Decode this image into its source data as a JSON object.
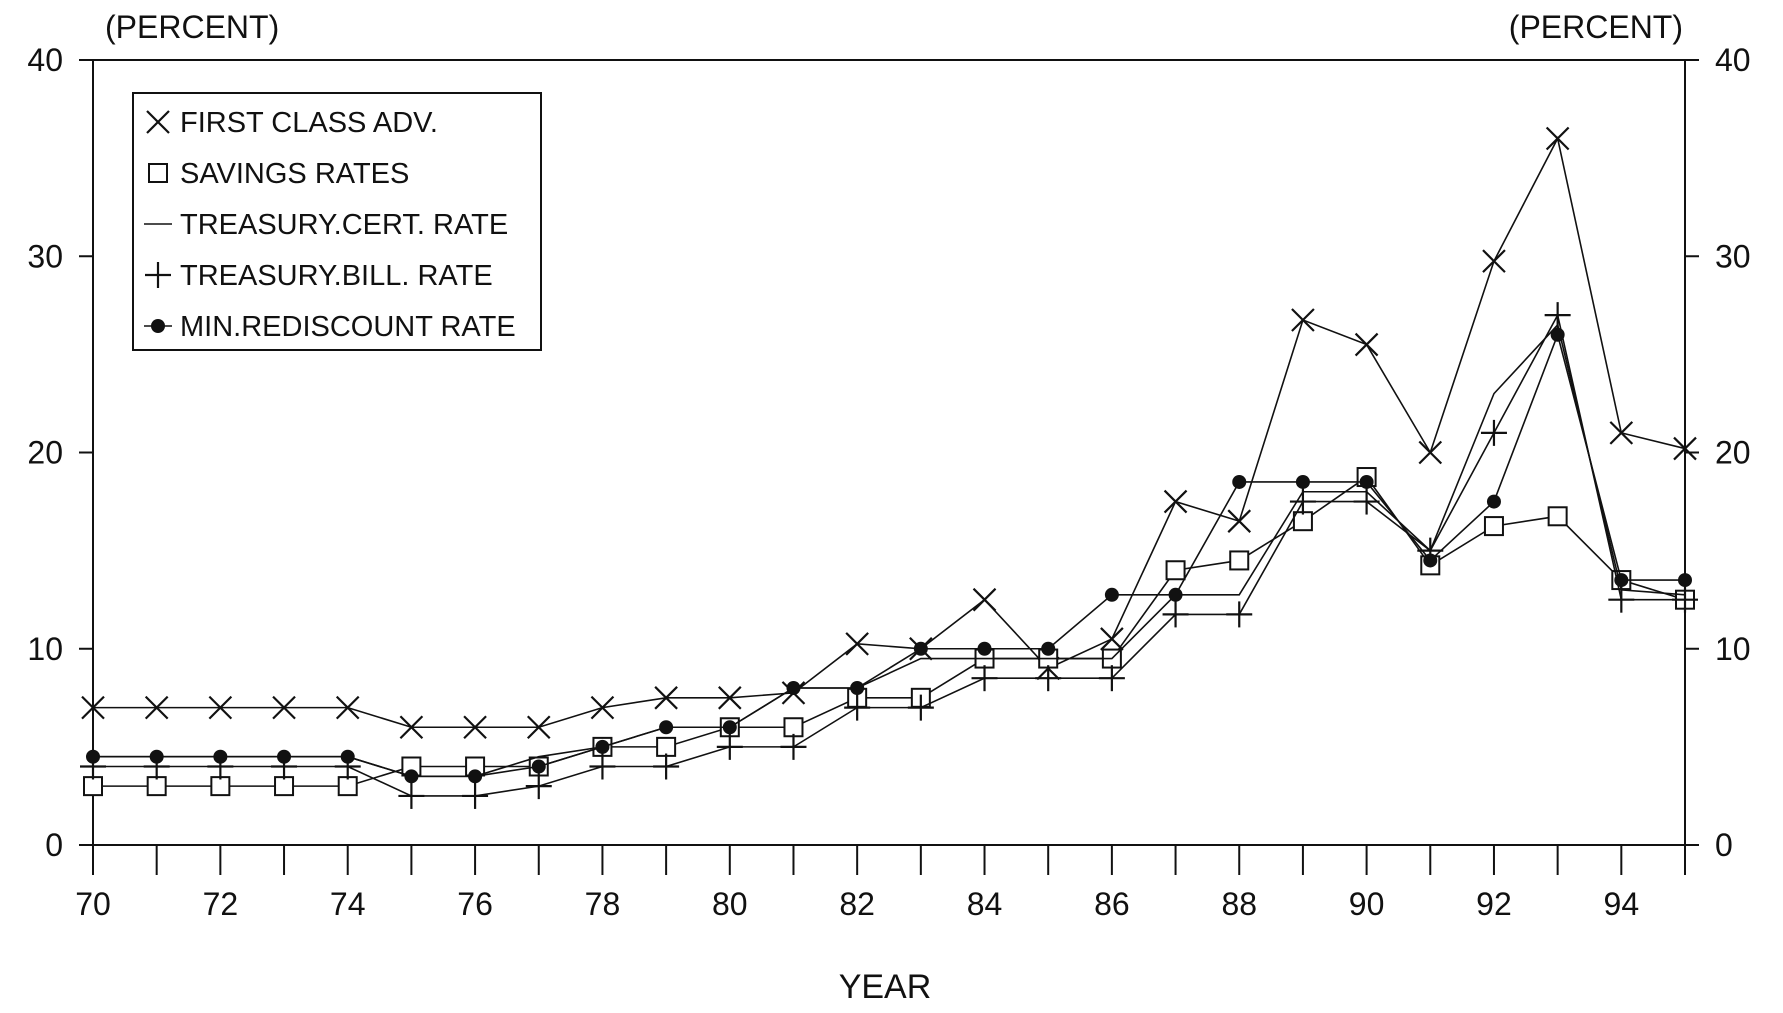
{
  "chart_data": {
    "type": "line",
    "title": "",
    "xlabel": "YEAR",
    "left_unit_label": "(PERCENT)",
    "right_unit_label": "(PERCENT)",
    "x": [
      70,
      71,
      72,
      73,
      74,
      75,
      76,
      77,
      78,
      79,
      80,
      81,
      82,
      83,
      84,
      85,
      86,
      87,
      88,
      89,
      90,
      91,
      92,
      93,
      94,
      95
    ],
    "x_tick_labels": [
      "70",
      "72",
      "74",
      "76",
      "78",
      "80",
      "82",
      "84",
      "86",
      "88",
      "90",
      "92",
      "94"
    ],
    "x_tick_values": [
      70,
      72,
      74,
      76,
      78,
      80,
      82,
      84,
      86,
      88,
      90,
      92,
      94
    ],
    "y_tick_labels": [
      "0",
      "10",
      "20",
      "30",
      "40"
    ],
    "y_tick_values": [
      0,
      10,
      20,
      30,
      40
    ],
    "xlim": [
      70,
      95
    ],
    "ylim": [
      0,
      40
    ],
    "grid": false,
    "legend_position": "top-left",
    "series": [
      {
        "name": "FIRST CLASS ADV.",
        "marker": "x",
        "values": [
          7.0,
          7.0,
          7.0,
          7.0,
          7.0,
          6.0,
          6.0,
          6.0,
          7.0,
          7.5,
          7.5,
          7.75,
          10.25,
          10.0,
          12.5,
          9.0,
          10.5,
          17.5,
          16.5,
          26.75,
          25.5,
          20.0,
          29.75,
          36.0,
          21.0,
          20.2
        ]
      },
      {
        "name": "SAVINGS RATES",
        "marker": "square",
        "values": [
          3.0,
          3.0,
          3.0,
          3.0,
          3.0,
          4.0,
          4.0,
          4.0,
          5.0,
          5.0,
          6.0,
          6.0,
          7.5,
          7.5,
          9.5,
          9.5,
          9.5,
          14.0,
          14.5,
          16.5,
          18.75,
          14.25,
          16.25,
          16.75,
          13.5,
          12.5
        ]
      },
      {
        "name": "TREASURY.CERT. RATE",
        "marker": "none",
        "values": [
          4.5,
          4.5,
          4.5,
          4.5,
          4.5,
          3.5,
          3.5,
          4.5,
          5.0,
          6.0,
          6.0,
          8.0,
          8.0,
          9.5,
          9.5,
          9.5,
          9.5,
          12.75,
          12.75,
          18.0,
          18.0,
          15.0,
          23.0,
          26.5,
          13.0,
          12.75
        ]
      },
      {
        "name": "TREASURY.BILL. RATE",
        "marker": "plus",
        "values": [
          4.0,
          4.0,
          4.0,
          4.0,
          4.0,
          2.5,
          2.5,
          3.0,
          4.0,
          4.0,
          5.0,
          5.0,
          7.0,
          7.0,
          8.5,
          8.5,
          8.5,
          11.75,
          11.75,
          17.5,
          17.5,
          15.0,
          21.0,
          27.0,
          12.5,
          12.5
        ]
      },
      {
        "name": "MIN.REDISCOUNT RATE",
        "marker": "dot",
        "values": [
          4.5,
          4.5,
          4.5,
          4.5,
          4.5,
          3.5,
          3.5,
          4.0,
          5.0,
          6.0,
          6.0,
          8.0,
          8.0,
          10.0,
          10.0,
          10.0,
          12.75,
          12.75,
          18.5,
          18.5,
          18.5,
          14.5,
          17.5,
          26.0,
          13.5,
          13.5
        ]
      }
    ]
  }
}
